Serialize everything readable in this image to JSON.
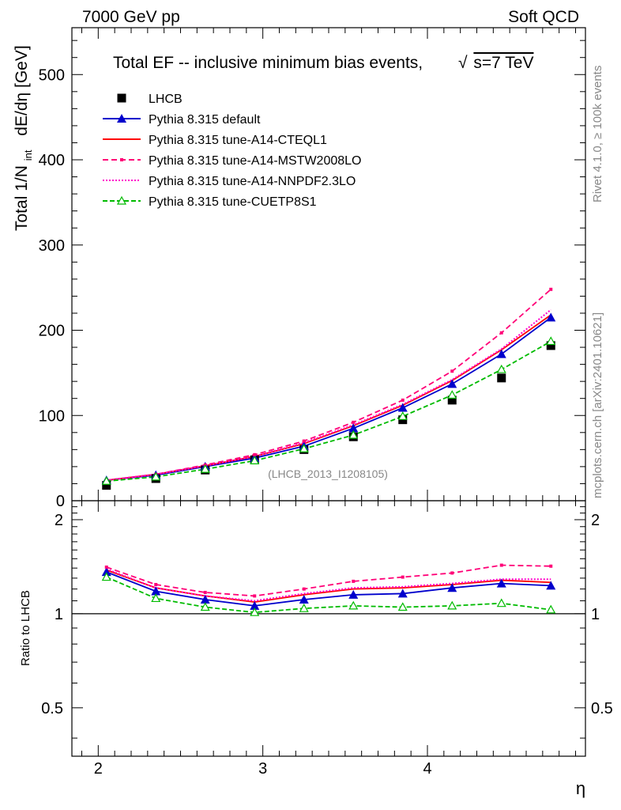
{
  "header": {
    "left": "7000 GeV pp",
    "right": "Soft QCD"
  },
  "side_labels": {
    "rivet": "Rivet 4.1.0, ≥ 100k events",
    "mcplots": "mcplots.cern.ch [arXiv:2401.10621]"
  },
  "chart_data": {
    "type": "line",
    "title": "Total EF -- inclusive minimum bias events, √s=7 TeV",
    "title_text": "Total EF -- inclusive minimum bias events,",
    "title_sqrt": "√",
    "title_energy": "s=7 TeV",
    "analysis_label": "(LHCB_2013_I1208105)",
    "xlabel": "η",
    "ylabel": "Total 1/N_int  dE/dη [GeV]",
    "ylabel_main": "Total 1/N",
    "ylabel_sub": "int",
    "ylabel_rest": "dE/dη [GeV]",
    "ratio_ylabel": "Ratio to LHCB",
    "xlim": [
      1.84,
      4.96
    ],
    "ylim": [
      0,
      555
    ],
    "ratio_ylim": [
      0.35,
      2.3
    ],
    "x_ticks": [
      2,
      3,
      4
    ],
    "x_tick_labels": [
      "2",
      "3",
      "4"
    ],
    "y_ticks": [
      0,
      100,
      200,
      300,
      400,
      500
    ],
    "y_tick_labels": [
      "0",
      "100",
      "200",
      "300",
      "400",
      "500"
    ],
    "ratio_ticks": [
      0.5,
      1,
      2
    ],
    "ratio_tick_labels": [
      "0.5",
      "1",
      "2"
    ],
    "x": [
      2.05,
      2.35,
      2.65,
      2.95,
      3.25,
      3.55,
      3.85,
      4.15,
      4.45,
      4.75
    ],
    "data": {
      "name": "LHCB",
      "values": [
        18,
        26,
        36,
        48,
        60,
        75,
        95,
        118,
        144,
        182
      ],
      "color": "#000000"
    },
    "series": [
      {
        "name": "Pythia 8.315 default",
        "color": "#0000cc",
        "dash": "",
        "marker": "triangle",
        "values": [
          24,
          30,
          40,
          50,
          64,
          85,
          109,
          137,
          172,
          215
        ],
        "ratio": [
          1.36,
          1.18,
          1.11,
          1.06,
          1.11,
          1.15,
          1.16,
          1.21,
          1.25,
          1.23
        ]
      },
      {
        "name": "Pythia 8.315 tune-A14-CTEQL1",
        "color": "#ff0000",
        "dash": "",
        "marker": "none",
        "values": [
          24,
          31,
          41,
          52,
          67,
          88,
          112,
          141,
          177,
          218
        ],
        "ratio": [
          1.38,
          1.21,
          1.14,
          1.09,
          1.15,
          1.2,
          1.21,
          1.24,
          1.28,
          1.26
        ]
      },
      {
        "name": "Pythia 8.315 tune-A14-MSTW2008LO",
        "color": "#ff0077",
        "dash": "7,4",
        "marker": "square",
        "values": [
          24,
          31,
          42,
          54,
          70,
          92,
          118,
          152,
          197,
          248
        ],
        "ratio": [
          1.41,
          1.24,
          1.17,
          1.14,
          1.2,
          1.27,
          1.31,
          1.35,
          1.43,
          1.42
        ]
      },
      {
        "name": "Pythia 8.315 tune-A14-NNPDF2.3LO",
        "color": "#ff00cc",
        "dash": "2,2",
        "marker": "none",
        "values": [
          24,
          31,
          41,
          52,
          68,
          89,
          113,
          142,
          178,
          224
        ],
        "ratio": [
          1.39,
          1.21,
          1.14,
          1.1,
          1.16,
          1.21,
          1.22,
          1.25,
          1.29,
          1.29
        ]
      },
      {
        "name": "Pythia 8.315 tune-CUETP8S1",
        "color": "#00bb00",
        "dash": "6,3",
        "marker": "open-triangle",
        "values": [
          23,
          28,
          37,
          47,
          61,
          77,
          99,
          124,
          154,
          187
        ],
        "ratio": [
          1.31,
          1.12,
          1.05,
          1.01,
          1.04,
          1.06,
          1.05,
          1.06,
          1.08,
          1.03
        ]
      }
    ]
  }
}
